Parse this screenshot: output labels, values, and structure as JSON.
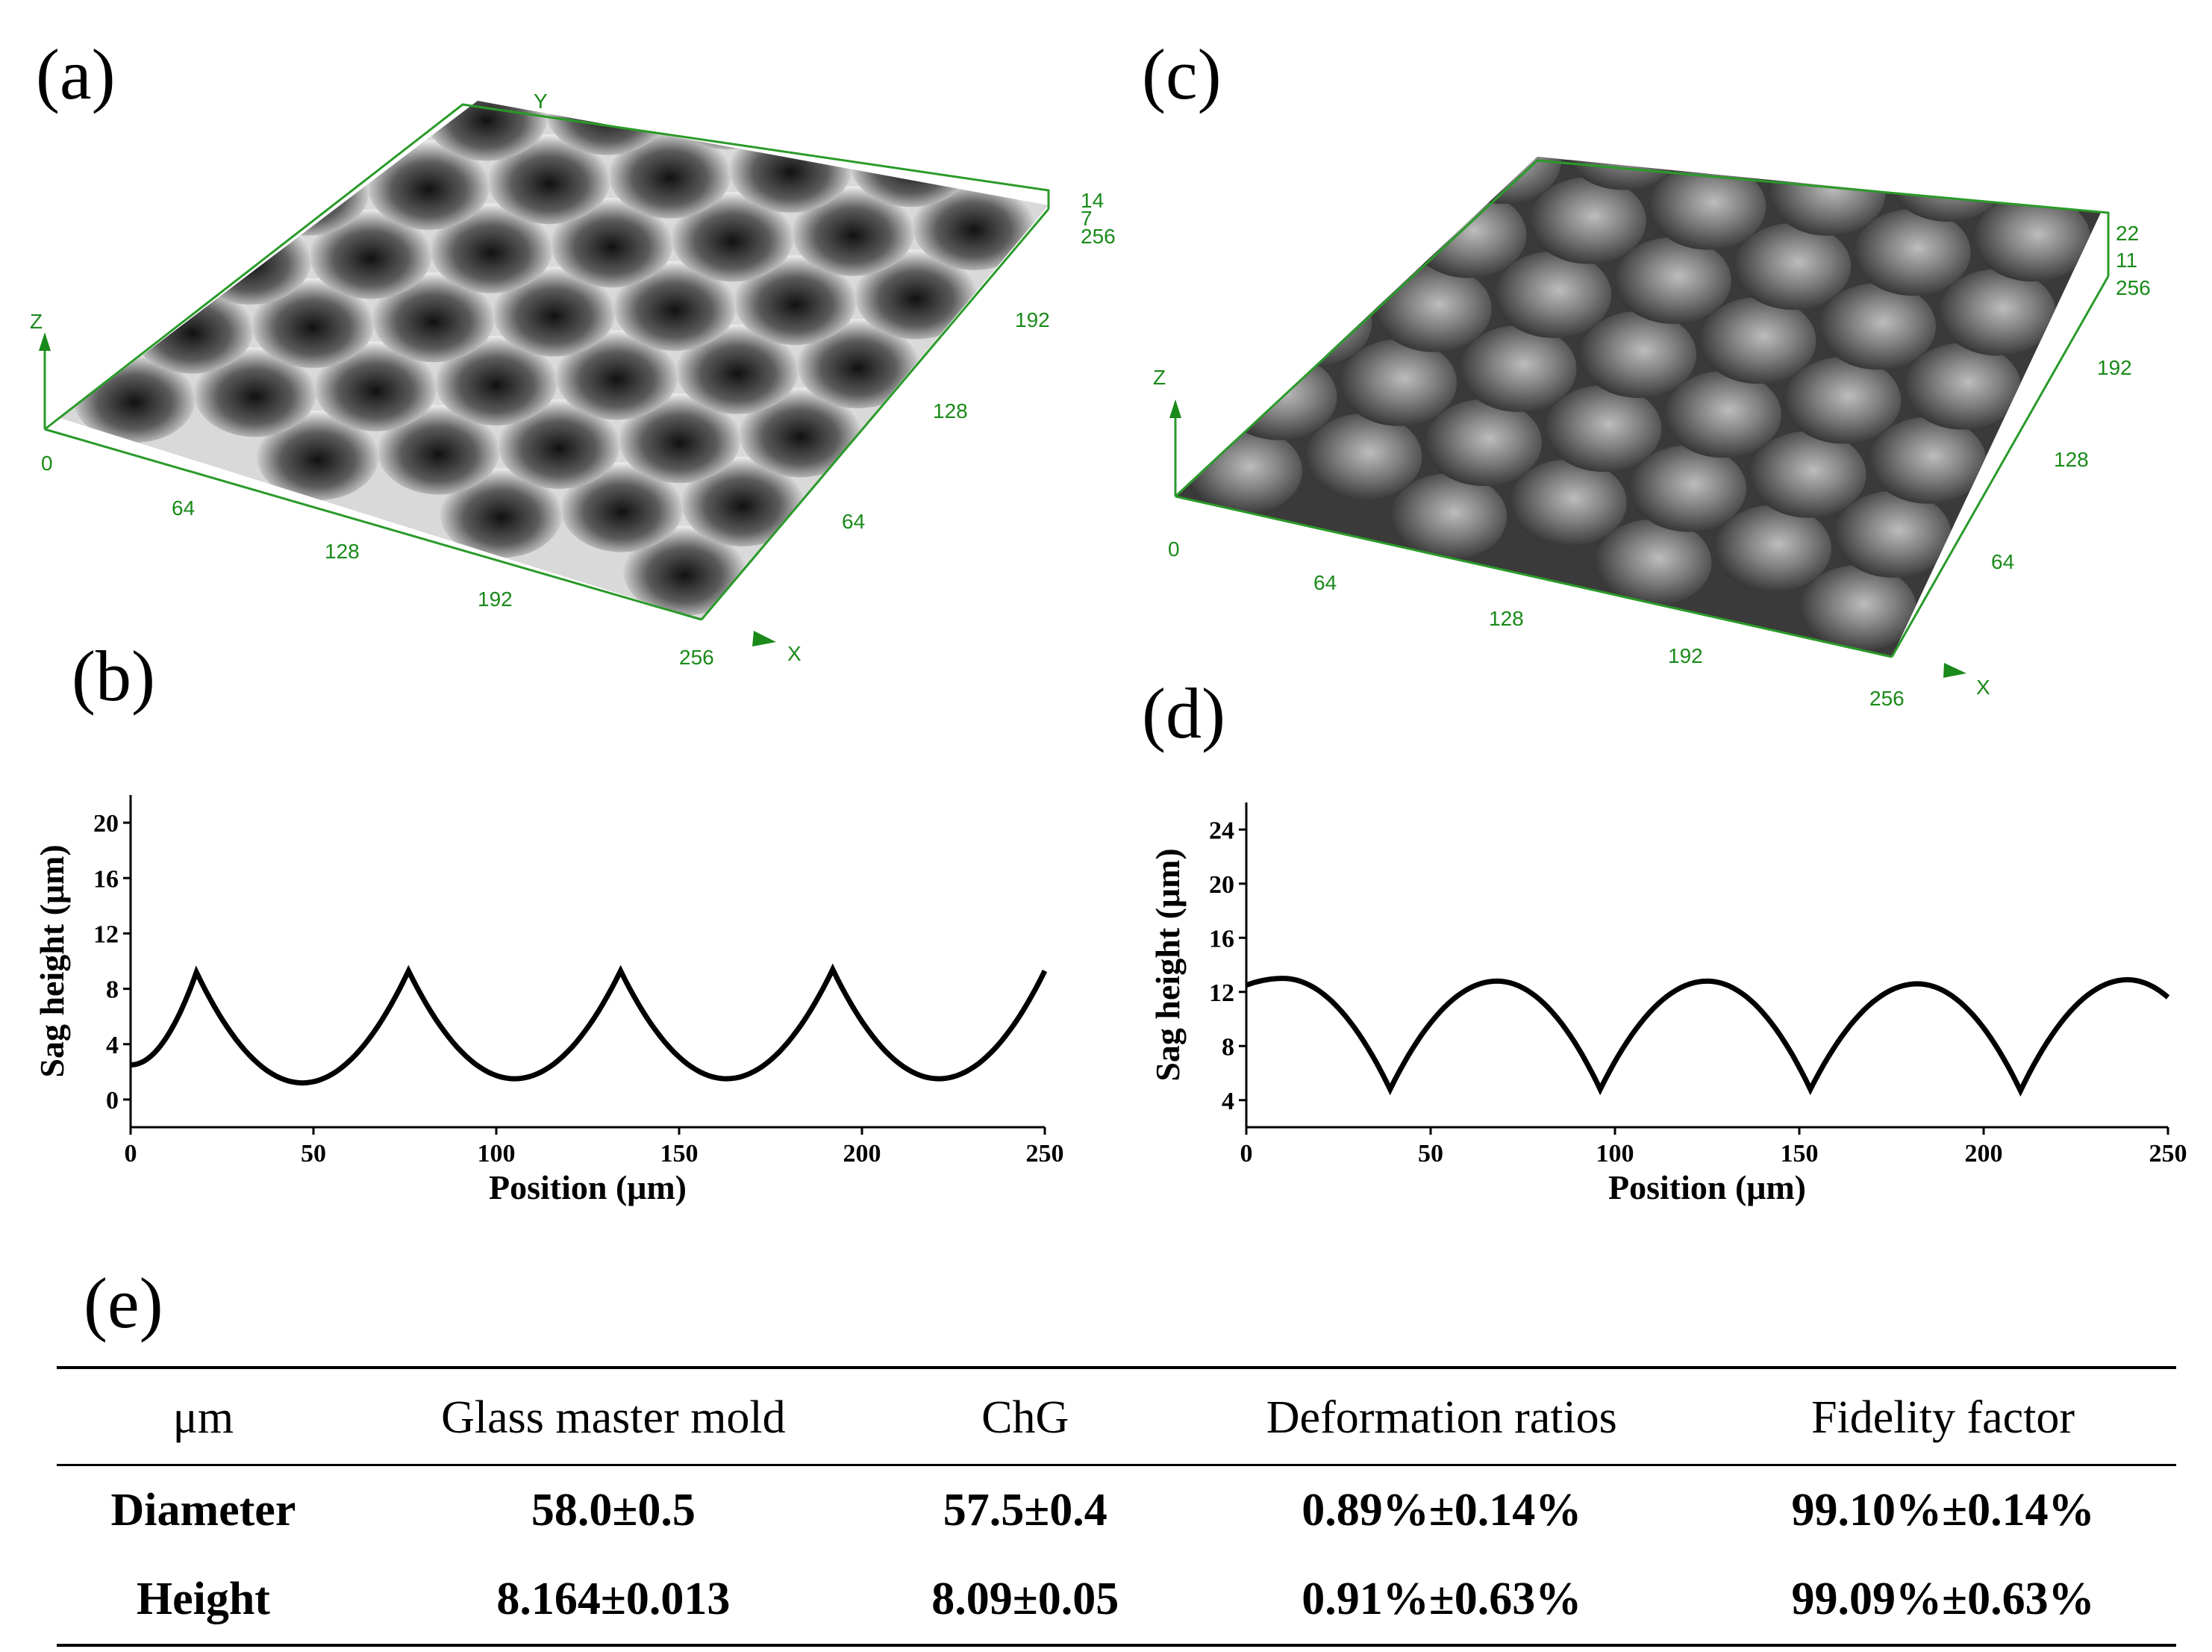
{
  "labels": {
    "a": "(a)",
    "b": "(b)",
    "c": "(c)",
    "d": "(d)",
    "e": "(e)"
  },
  "surface_a": {
    "x_ticks": [
      "0",
      "64",
      "128",
      "192",
      "256"
    ],
    "y_ticks": [
      "64",
      "128",
      "192",
      "256"
    ],
    "z_top": "14",
    "z_mid": "7",
    "axis_x": "X",
    "axis_y": "Y",
    "axis_z": "Z"
  },
  "surface_c": {
    "x_ticks": [
      "0",
      "64",
      "128",
      "192",
      "256"
    ],
    "y_ticks": [
      "64",
      "128",
      "192",
      "256"
    ],
    "z_top": "22",
    "z_mid": "11",
    "axis_x": "X",
    "axis_z": "Z"
  },
  "chart_data": [
    {
      "type": "line",
      "panel": "(b)",
      "xlabel": "Position (μm)",
      "ylabel": "Sag height (μm)",
      "xlim": [
        0,
        250
      ],
      "ylim": [
        -2,
        22
      ],
      "xticks": [
        0,
        50,
        100,
        150,
        200,
        250
      ],
      "yticks": [
        0,
        4,
        8,
        12,
        16,
        20
      ],
      "series": [
        {
          "name": "glass master mold",
          "x": [
            0,
            18,
            47,
            76,
            105,
            134,
            163,
            192,
            221,
            250
          ],
          "y": [
            2.5,
            9.2,
            1.2,
            9.3,
            1.5,
            9.3,
            1.5,
            9.4,
            1.5,
            9.3
          ]
        }
      ]
    },
    {
      "type": "line",
      "panel": "(d)",
      "xlabel": "Position (μm)",
      "ylabel": "Sag height (μm)",
      "xlim": [
        0,
        250
      ],
      "ylim": [
        2,
        26
      ],
      "xticks": [
        0,
        50,
        100,
        150,
        200,
        250
      ],
      "yticks": [
        4,
        8,
        12,
        16,
        20,
        24
      ],
      "series": [
        {
          "name": "ChG",
          "x": [
            0,
            10,
            39,
            68,
            96,
            125,
            153,
            182,
            210,
            239,
            250
          ],
          "y": [
            12.5,
            13.0,
            4.8,
            12.8,
            4.8,
            12.8,
            4.8,
            12.6,
            4.7,
            12.9,
            11.6
          ]
        }
      ]
    }
  ],
  "table": {
    "headers": [
      "μm",
      "Glass master mold",
      "ChG",
      "Deformation ratios",
      "Fidelity factor"
    ],
    "rows": [
      [
        "Diameter",
        "58.0±0.5",
        "57.5±0.4",
        "0.89%±0.14%",
        "99.10%±0.14%"
      ],
      [
        "Height",
        "8.164±0.013",
        "8.09±0.05",
        "0.91%±0.63%",
        "99.09%±0.63%"
      ]
    ]
  }
}
